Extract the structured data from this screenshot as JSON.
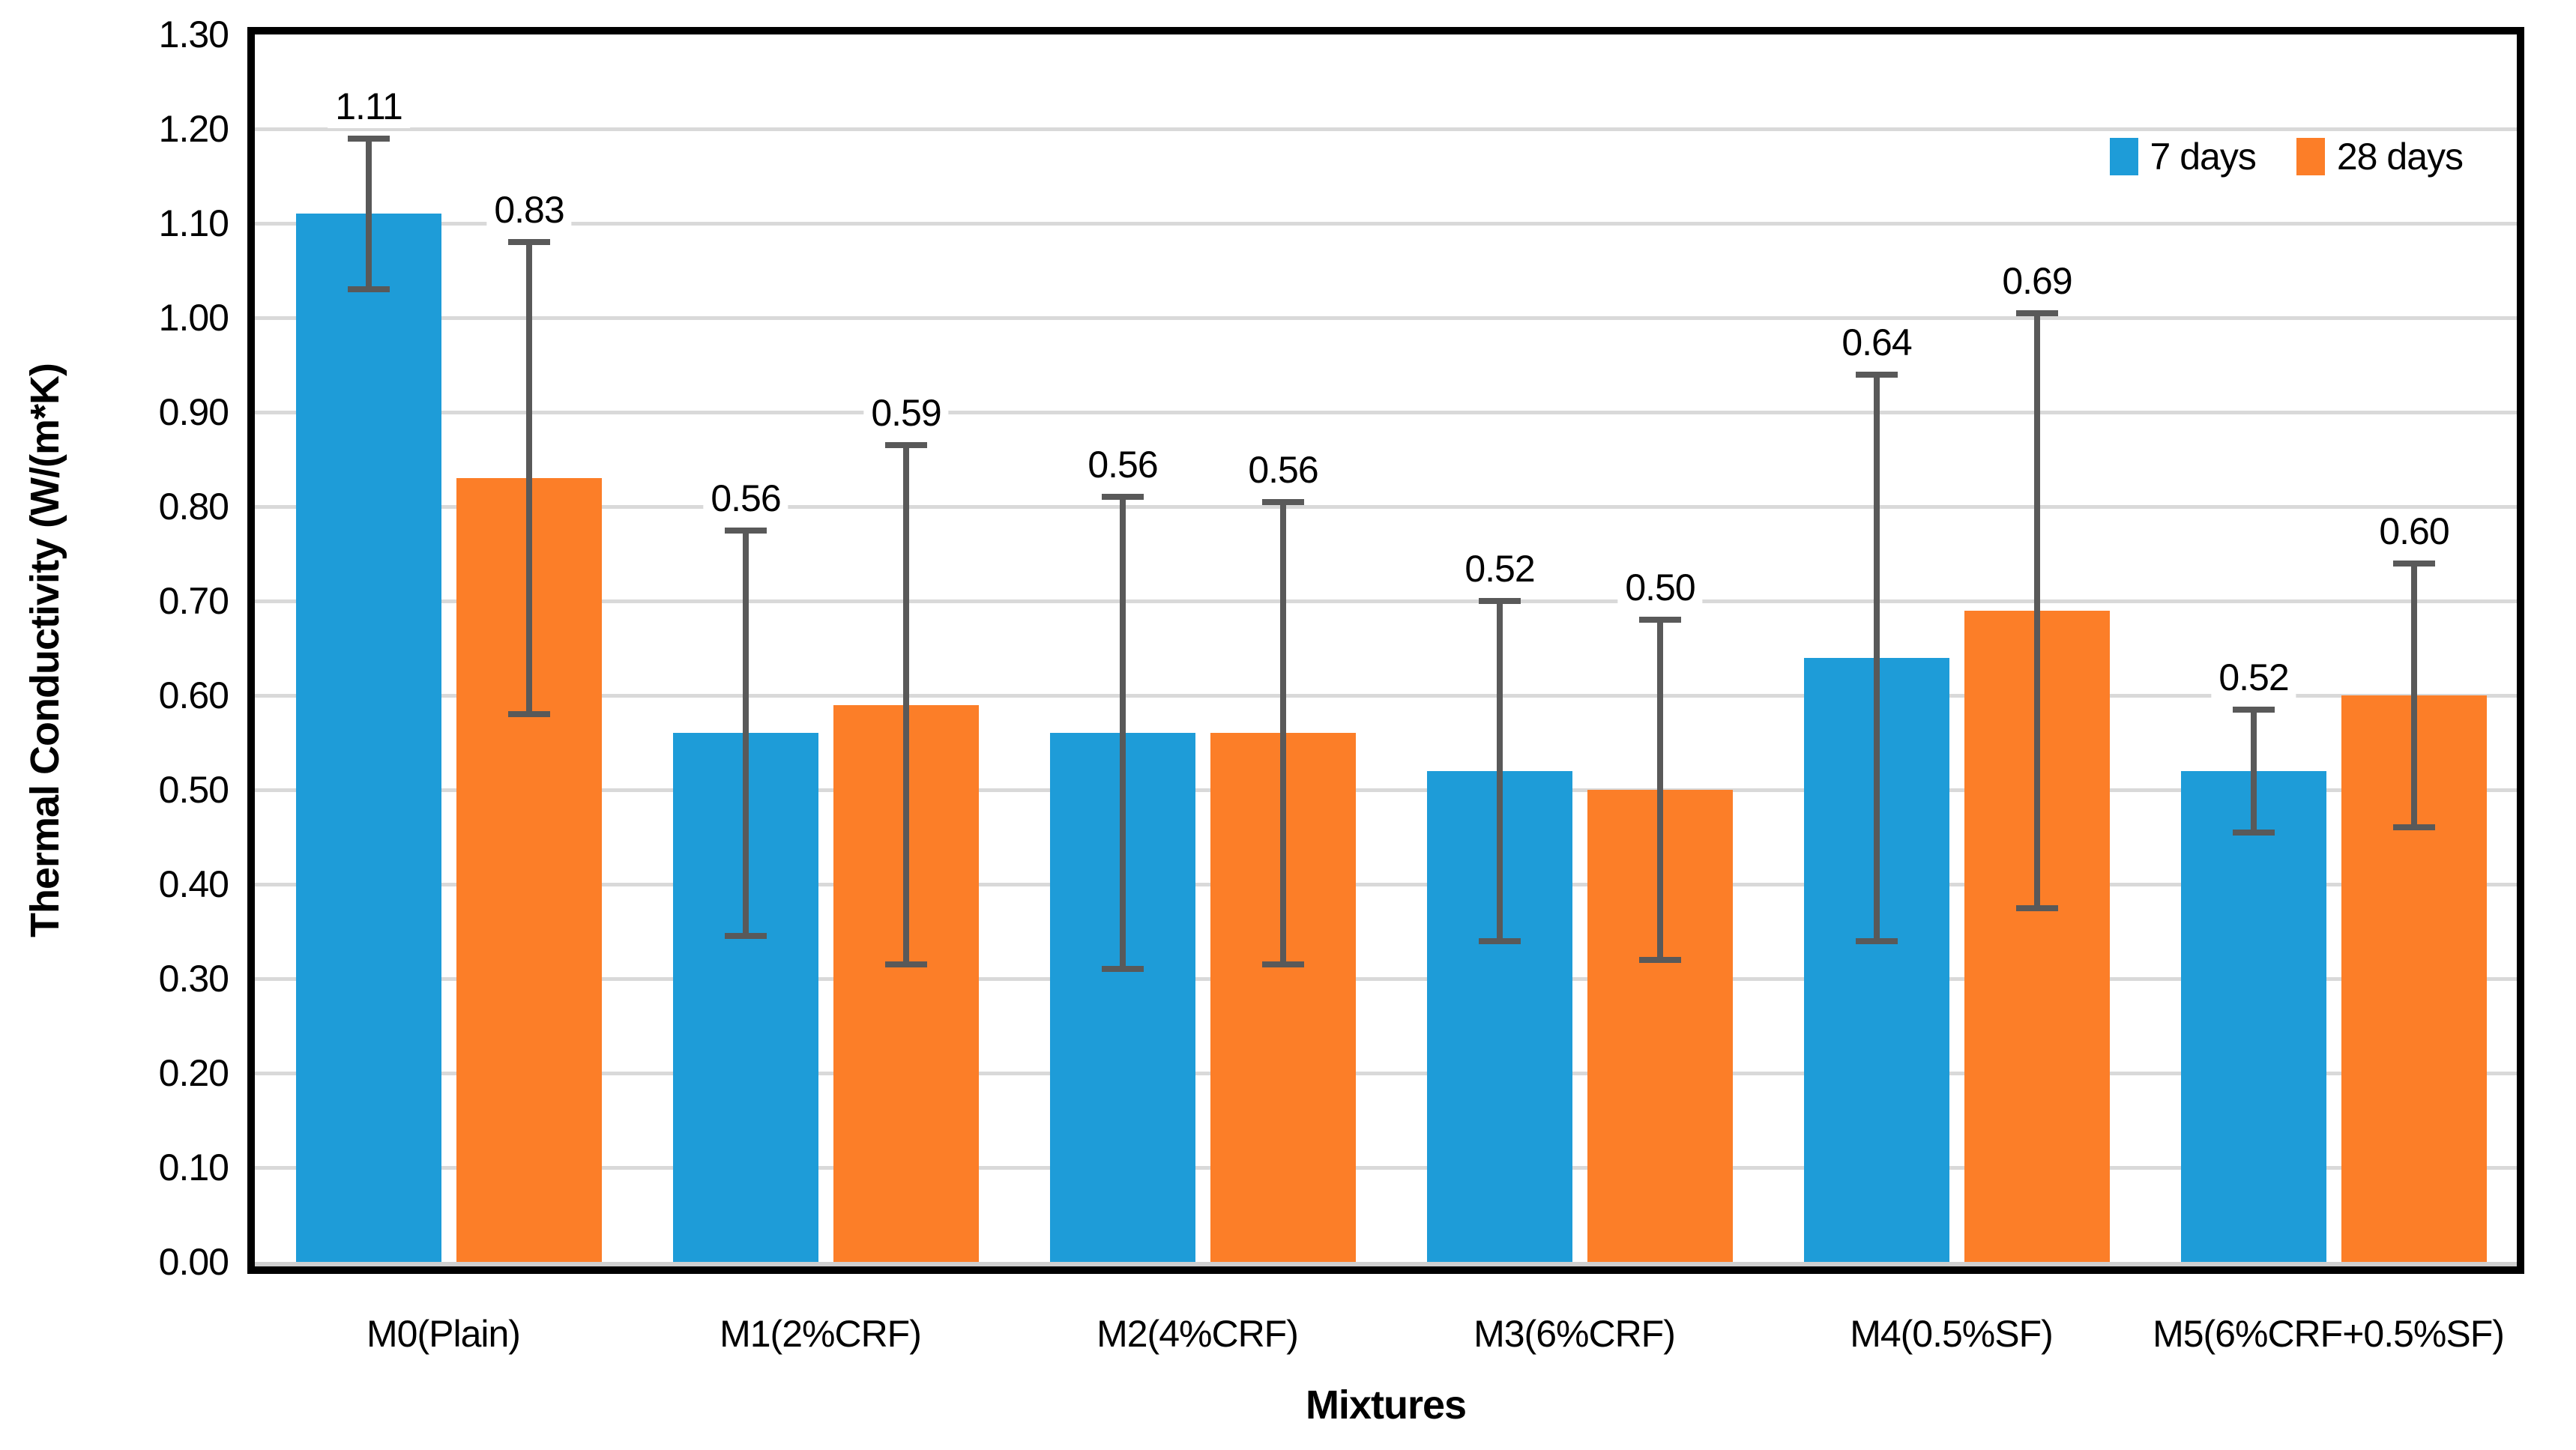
{
  "chart_data": {
    "type": "bar",
    "title": "",
    "xlabel": "Mixtures",
    "ylabel": "Thermal Conductivity (W/(m*K)",
    "categories": [
      "M0(Plain)",
      "M1(2%CRF)",
      "M2(4%CRF)",
      "M3(6%CRF)",
      "M4(0.5%SF)",
      "M5(6%CRF+0.5%SF)"
    ],
    "series": [
      {
        "name": "7 days",
        "color": "#1E9CD8",
        "values": [
          1.11,
          0.56,
          0.56,
          0.52,
          0.64,
          0.52
        ],
        "labels": [
          "1.11",
          "0.56",
          "0.56",
          "0.52",
          "0.64",
          "0.52"
        ],
        "error_plus": [
          0.08,
          0.215,
          0.25,
          0.18,
          0.3,
          0.065
        ],
        "error_minus": [
          0.08,
          0.215,
          0.25,
          0.18,
          0.3,
          0.065
        ]
      },
      {
        "name": "28 days",
        "color": "#FC7E28",
        "values": [
          0.83,
          0.59,
          0.56,
          0.5,
          0.69,
          0.6
        ],
        "labels": [
          "0.83",
          "0.59",
          "0.56",
          "0.50",
          "0.69",
          "0.60"
        ],
        "error_plus": [
          0.25,
          0.275,
          0.245,
          0.18,
          0.315,
          0.14
        ],
        "error_minus": [
          0.25,
          0.275,
          0.245,
          0.18,
          0.315,
          0.14
        ]
      }
    ],
    "y_ticks": [
      "0.00",
      "0.10",
      "0.20",
      "0.30",
      "0.40",
      "0.50",
      "0.60",
      "0.70",
      "0.80",
      "0.90",
      "1.00",
      "1.10",
      "1.20",
      "1.30"
    ],
    "ylim": [
      0,
      1.3
    ],
    "ytick_step": 0.1,
    "grid": true,
    "legend_position": "top-right",
    "colors": {
      "gridline": "#D9D9D9",
      "error_bar": "#595959",
      "axis_border": "#000000",
      "category_axis_line": "#CFCFCF",
      "data_label_text": "#000000"
    }
  }
}
